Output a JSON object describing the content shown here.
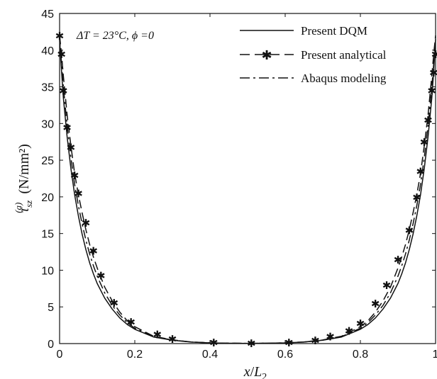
{
  "chart_data": {
    "type": "line",
    "xlabel": "x/L₂",
    "ylabel": "τsz(a)  (N/mm²)",
    "ylabel_parts": {
      "symbol": "τ",
      "sub": "sz",
      "sup": "(a)",
      "unit": "(N/mm²)"
    },
    "xlabel_parts": {
      "x": "x",
      "slash": "/",
      "L": "L",
      "sub": "2"
    },
    "xlim": [
      0,
      1
    ],
    "ylim": [
      0,
      45
    ],
    "xticks": [
      "0",
      "0.2",
      "0.4",
      "0.6",
      "0.8",
      "1"
    ],
    "yticks": [
      "0",
      "5",
      "10",
      "15",
      "20",
      "25",
      "30",
      "35",
      "40",
      "45"
    ],
    "annotation": "ΔT = 23°C,  ϕ =0",
    "legend_position": "top-right",
    "grid": false,
    "series": [
      {
        "name": "Present DQM",
        "style": "solid",
        "x": [
          0,
          0.005,
          0.01,
          0.02,
          0.03,
          0.04,
          0.05,
          0.06,
          0.07,
          0.08,
          0.09,
          0.1,
          0.12,
          0.14,
          0.16,
          0.18,
          0.2,
          0.25,
          0.3,
          0.35,
          0.4,
          0.45,
          0.5,
          0.55,
          0.6,
          0.65,
          0.7,
          0.75,
          0.8,
          0.82,
          0.84,
          0.86,
          0.88,
          0.9,
          0.91,
          0.92,
          0.93,
          0.94,
          0.95,
          0.96,
          0.97,
          0.98,
          0.99,
          0.995,
          1
        ],
        "values": [
          41.5,
          37.2,
          33.5,
          28.2,
          23.9,
          20.3,
          17.4,
          14.9,
          12.8,
          11.0,
          9.5,
          8.2,
          6.2,
          4.7,
          3.5,
          2.6,
          1.95,
          0.9,
          0.45,
          0.2,
          0.1,
          0.05,
          0.03,
          0.05,
          0.1,
          0.2,
          0.45,
          0.9,
          1.95,
          2.6,
          3.5,
          4.7,
          6.2,
          8.2,
          9.5,
          11.0,
          12.8,
          14.9,
          17.4,
          20.3,
          23.9,
          28.2,
          33.5,
          37.2,
          41.5
        ]
      },
      {
        "name": "Present analytical",
        "style": "dashed-star",
        "x": [
          0,
          0.005,
          0.01,
          0.02,
          0.03,
          0.04,
          0.05,
          0.06,
          0.07,
          0.08,
          0.09,
          0.1,
          0.12,
          0.14,
          0.16,
          0.18,
          0.2,
          0.25,
          0.3,
          0.35,
          0.4,
          0.45,
          0.5,
          0.55,
          0.6,
          0.65,
          0.7,
          0.75,
          0.8,
          0.82,
          0.84,
          0.86,
          0.88,
          0.9,
          0.91,
          0.92,
          0.93,
          0.94,
          0.95,
          0.96,
          0.97,
          0.98,
          0.99,
          0.995,
          1
        ],
        "values": [
          42.0,
          39.5,
          36.5,
          31.2,
          27.0,
          23.2,
          20.3,
          17.8,
          15.5,
          13.5,
          11.8,
          10.3,
          7.7,
          5.8,
          4.3,
          3.1,
          2.3,
          1.0,
          0.5,
          0.22,
          0.1,
          0.05,
          0.03,
          0.05,
          0.1,
          0.22,
          0.5,
          1.0,
          2.3,
          3.1,
          4.3,
          5.8,
          7.7,
          10.3,
          11.8,
          13.5,
          15.5,
          17.8,
          20.3,
          23.2,
          27.0,
          31.2,
          36.5,
          39.5,
          42.0
        ],
        "markers_x": [
          0,
          0.005,
          0.01,
          0.02,
          0.03,
          0.04,
          0.05,
          0.07,
          0.09,
          0.11,
          0.145,
          0.19,
          0.26,
          0.3,
          0.41,
          0.51,
          0.61,
          0.68,
          0.72,
          0.77,
          0.8,
          0.84,
          0.87,
          0.9,
          0.93,
          0.95,
          0.96,
          0.97,
          0.98,
          0.99,
          0.995,
          1
        ],
        "markers_y": [
          42.0,
          39.5,
          34.5,
          29.5,
          26.8,
          23.0,
          20.5,
          16.5,
          12.7,
          9.3,
          5.6,
          3.0,
          1.3,
          0.7,
          0.2,
          0.1,
          0.2,
          0.5,
          1.0,
          1.8,
          2.8,
          5.5,
          8.0,
          11.5,
          15.5,
          20.0,
          23.5,
          27.5,
          30.5,
          34.5,
          37.0,
          39.5
        ]
      },
      {
        "name": "Abaqus modeling",
        "style": "dashdot",
        "x": [
          0,
          0.005,
          0.01,
          0.02,
          0.03,
          0.04,
          0.05,
          0.06,
          0.07,
          0.08,
          0.09,
          0.1,
          0.12,
          0.14,
          0.16,
          0.18,
          0.2,
          0.25,
          0.3,
          0.35,
          0.4,
          0.45,
          0.5,
          0.55,
          0.6,
          0.65,
          0.7,
          0.75,
          0.8,
          0.82,
          0.84,
          0.86,
          0.88,
          0.9,
          0.91,
          0.92,
          0.93,
          0.94,
          0.95,
          0.96,
          0.97,
          0.98,
          0.99,
          0.995,
          1
        ],
        "values": [
          41.8,
          38.2,
          35.0,
          29.7,
          25.4,
          21.7,
          18.8,
          16.3,
          14.1,
          12.2,
          10.6,
          9.2,
          6.9,
          5.2,
          3.9,
          2.85,
          2.1,
          0.95,
          0.48,
          0.21,
          0.1,
          0.05,
          0.03,
          0.05,
          0.1,
          0.21,
          0.48,
          0.95,
          2.1,
          2.85,
          3.9,
          5.2,
          6.9,
          9.2,
          10.6,
          12.2,
          14.1,
          16.3,
          18.8,
          21.7,
          25.4,
          29.7,
          35.0,
          38.2,
          41.8
        ]
      }
    ]
  }
}
